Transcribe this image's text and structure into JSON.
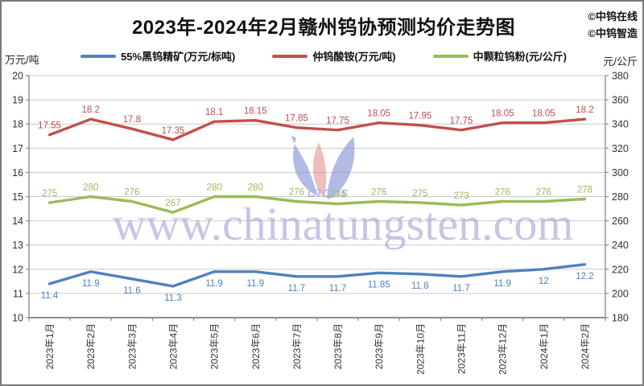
{
  "title": "2023年-2024年2月赣州钨协预测均价走势图",
  "branding": {
    "line1": "©中钨在线",
    "line2": "©中钨智造",
    "watermark": "www.chinatungsten.com",
    "logo_text": "CTOMS"
  },
  "legend": {
    "items": [
      {
        "label": "55%黑钨精矿(万元/标吨)",
        "color": "#4F81BD"
      },
      {
        "label": "仲钨酸铵(万元/吨)",
        "color": "#C0504D"
      },
      {
        "label": "中颗粒钨粉(元/公斤)",
        "color": "#9BBB59"
      }
    ]
  },
  "chart_data": {
    "type": "line",
    "title": "2023年-2024年2月赣州钨协预测均价走势图",
    "categories": [
      "2023年1月",
      "2023年2月",
      "2023年3月",
      "2023年4月",
      "2023年5月",
      "2023年6月",
      "2023年7月",
      "2023年8月",
      "2023年9月",
      "2023年10月",
      "2023年11月",
      "2023年12月",
      "2024年1月",
      "2024年2月"
    ],
    "series": [
      {
        "name": "55%黑钨精矿(万元/标吨)",
        "axis": "left",
        "color": "#4F81BD",
        "label_position": "below",
        "values": [
          11.4,
          11.9,
          11.6,
          11.3,
          11.9,
          11.9,
          11.7,
          11.7,
          11.85,
          11.8,
          11.7,
          11.9,
          12,
          12.2
        ]
      },
      {
        "name": "仲钨酸铵(万元/吨)",
        "axis": "left",
        "color": "#C0504D",
        "label_position": "above",
        "values": [
          17.55,
          18.2,
          17.8,
          17.35,
          18.1,
          18.15,
          17.85,
          17.75,
          18.05,
          17.95,
          17.75,
          18.05,
          18.05,
          18.2
        ]
      },
      {
        "name": "中颗粒钨粉(元/公斤)",
        "axis": "right",
        "color": "#9BBB59",
        "label_position": "above",
        "values": [
          275,
          280,
          276,
          267,
          280,
          280,
          276,
          274,
          276,
          275,
          273,
          276,
          276,
          278
        ]
      }
    ],
    "left_axis": {
      "label": "万元/吨",
      "min": 10,
      "max": 20,
      "step": 1
    },
    "right_axis": {
      "label": "元/公斤",
      "min": 180,
      "max": 380,
      "step": 20
    },
    "left_ticks": [
      20,
      19,
      18,
      17,
      16,
      15,
      14,
      13,
      12,
      11,
      10
    ],
    "right_ticks": [
      380,
      360,
      340,
      320,
      300,
      280,
      260,
      240,
      220,
      200,
      180
    ],
    "grid": true,
    "legend_position": "top",
    "colors": {
      "gridline": "#c9c9c9",
      "axis": "#8c8c8c",
      "tick_text": "#333333",
      "watermark": "#9898d2",
      "logo_blue": "#8c96d8",
      "logo_red": "#e89a9a"
    }
  }
}
